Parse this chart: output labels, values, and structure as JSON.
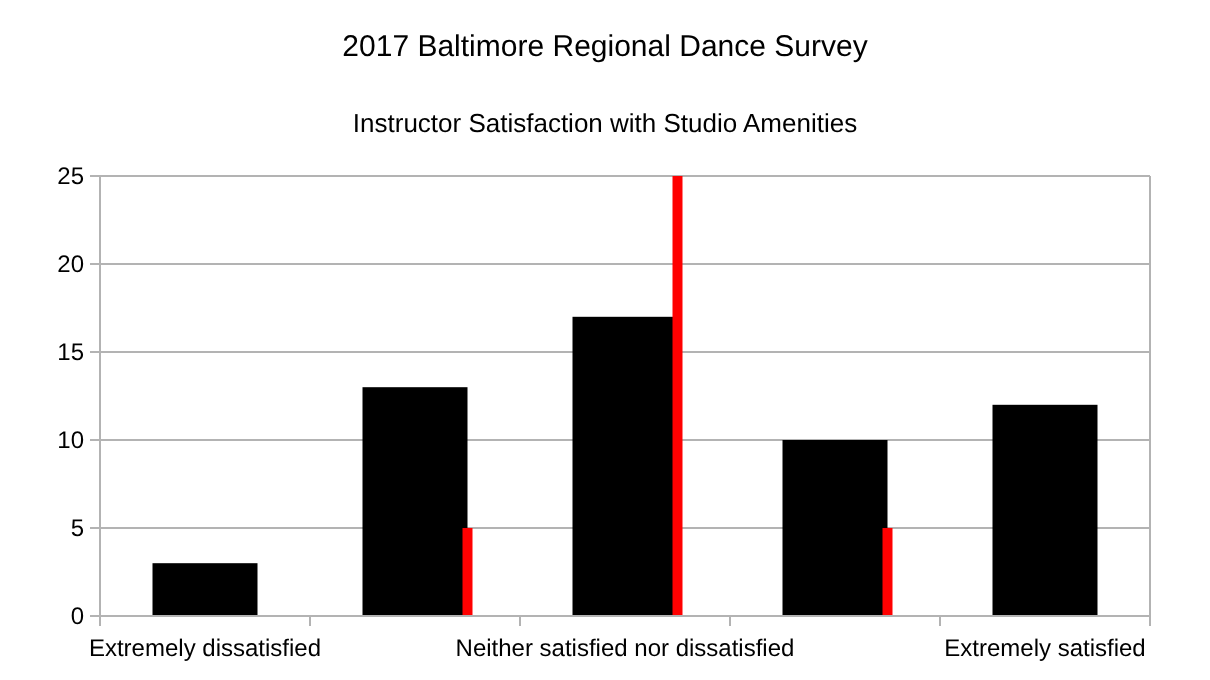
{
  "chart_data": {
    "type": "bar",
    "title": "2017 Baltimore Regional Dance Survey",
    "subtitle": "Instructor Satisfaction with Studio Amenities",
    "categories": [
      "Extremely dissatisfied",
      null,
      "Neither satisfied nor dissatisfied",
      null,
      "Extremely satisfied"
    ],
    "series": [
      {
        "color": "#000000",
        "values": [
          3,
          13,
          17,
          10,
          12
        ]
      },
      {
        "color": "#ff0000",
        "values": [
          null,
          5,
          25,
          5,
          null
        ]
      }
    ],
    "ylim": [
      0,
      25
    ],
    "yticks": [
      0,
      5,
      10,
      15,
      20,
      25
    ],
    "grid": "y"
  }
}
